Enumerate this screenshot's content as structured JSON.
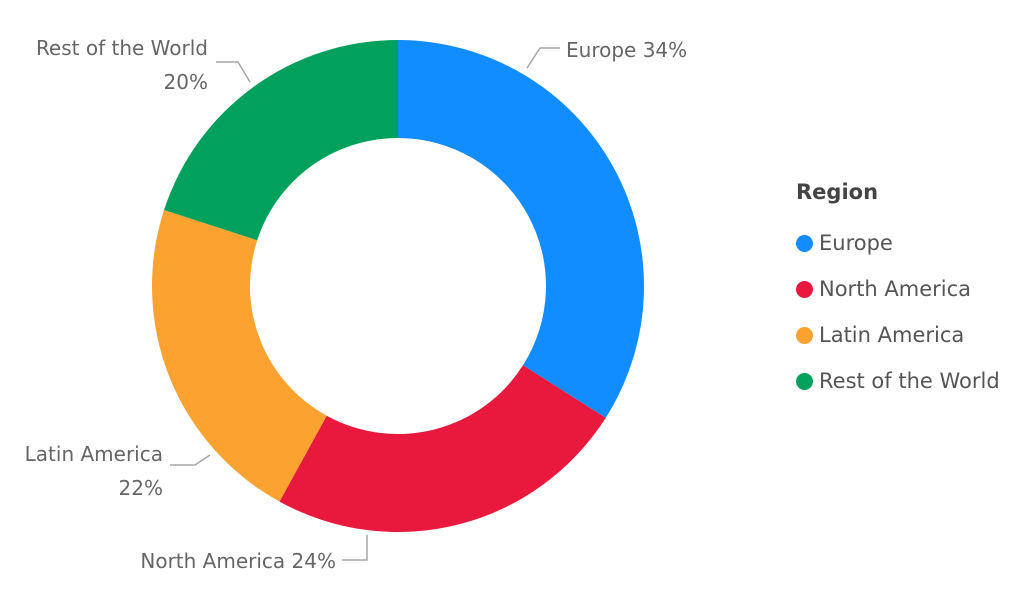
{
  "chart_data": {
    "type": "pie",
    "variant": "donut",
    "categories": [
      "Europe",
      "North America",
      "Latin America",
      "Rest of the World"
    ],
    "values": [
      34,
      24,
      22,
      20
    ],
    "value_unit": "%",
    "colors": [
      "#118dff",
      "#e8193c",
      "#fba230",
      "#01a05c"
    ],
    "slice_labels": [
      {
        "category": "Europe",
        "lines": [
          "Europe 34%"
        ]
      },
      {
        "category": "North America",
        "lines": [
          "North America 24%"
        ]
      },
      {
        "category": "Latin America",
        "lines": [
          "Latin America",
          "22%"
        ]
      },
      {
        "category": "Rest of the World",
        "lines": [
          "Rest of the World",
          "20%"
        ]
      }
    ],
    "legend": {
      "title": "Region",
      "placement": "right",
      "items": [
        "Europe",
        "North America",
        "Latin America",
        "Rest of the World"
      ]
    }
  }
}
